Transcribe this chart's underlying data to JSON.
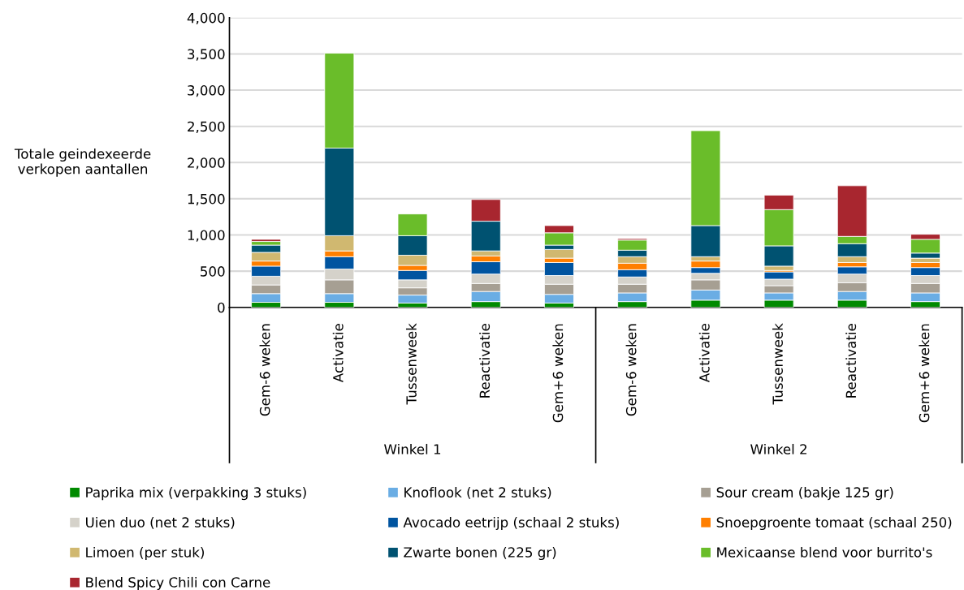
{
  "chart_data": {
    "type": "bar",
    "stacked": true,
    "ylabel": "Totale geindexeerde\nverkopen aantallen",
    "categories": [
      "Gem-6 weken",
      "Activatie",
      "Tussenweek",
      "Reactivatie",
      "Gem+6 weken",
      "Gem-6 weken",
      "Activatie",
      "Tussenweek",
      "Reactivatie",
      "Gem+6 weken"
    ],
    "annotations": [
      "Winkel 1",
      "Winkel 2"
    ],
    "ylim": [
      0,
      4000
    ],
    "yticks": [
      0,
      {
        "value": 500,
        "label": "500"
      },
      {
        "value": 1000,
        "label": "1,000"
      },
      {
        "value": 1500,
        "label": "1,500"
      },
      {
        "value": 2000,
        "label": "2,000"
      },
      {
        "value": 2500,
        "label": "2,500"
      },
      {
        "value": 3000,
        "label": "3,000"
      },
      {
        "value": 3500,
        "label": "3,500"
      },
      {
        "value": 4000,
        "label": "4,000"
      }
    ],
    "grid": "y",
    "legend": "bottom",
    "series": [
      {
        "name": "Paprika mix (verpakking 3 stuks)",
        "color": "#008a00",
        "values": [
          70,
          70,
          60,
          80,
          60,
          80,
          100,
          100,
          100,
          80
        ]
      },
      {
        "name": "Knoflook (net 2 stuks)",
        "color": "#6aade4",
        "values": [
          120,
          120,
          110,
          140,
          120,
          120,
          140,
          100,
          120,
          120
        ]
      },
      {
        "name": "Sour cream (bakje 125 gr)",
        "color": "#a69f93",
        "values": [
          120,
          190,
          100,
          110,
          140,
          120,
          140,
          100,
          120,
          130
        ]
      },
      {
        "name": "Uien duo (net 2 stuks)",
        "color": "#d5d2ca",
        "values": [
          120,
          150,
          110,
          130,
          120,
          100,
          90,
          90,
          120,
          110
        ]
      },
      {
        "name": "Avocado eetrijp (schaal 2 stuks)",
        "color": "#0054a0",
        "values": [
          140,
          170,
          130,
          170,
          180,
          100,
          80,
          100,
          100,
          110
        ]
      },
      {
        "name": "Snoepgroente tomaat (schaal 250)",
        "color": "#ff7f00",
        "values": [
          70,
          80,
          70,
          80,
          60,
          90,
          90,
          20,
          60,
          70
        ]
      },
      {
        "name": "Limoen (per stuk)",
        "color": "#d0b870",
        "values": [
          120,
          210,
          140,
          70,
          120,
          90,
          60,
          60,
          80,
          60
        ]
      },
      {
        "name": "Zwarte bonen (225 gr)",
        "color": "#005271",
        "values": [
          100,
          1210,
          270,
          410,
          60,
          90,
          430,
          280,
          180,
          70
        ]
      },
      {
        "name": "Mexicaanse blend voor burrito's",
        "color": "#6abd2a",
        "values": [
          50,
          1310,
          300,
          null,
          170,
          140,
          1310,
          500,
          100,
          190
        ]
      },
      {
        "name": "Blend Spicy Chili con Carne",
        "color": "#a8262f",
        "values": [
          30,
          null,
          null,
          300,
          100,
          20,
          null,
          200,
          700,
          70
        ]
      }
    ]
  }
}
